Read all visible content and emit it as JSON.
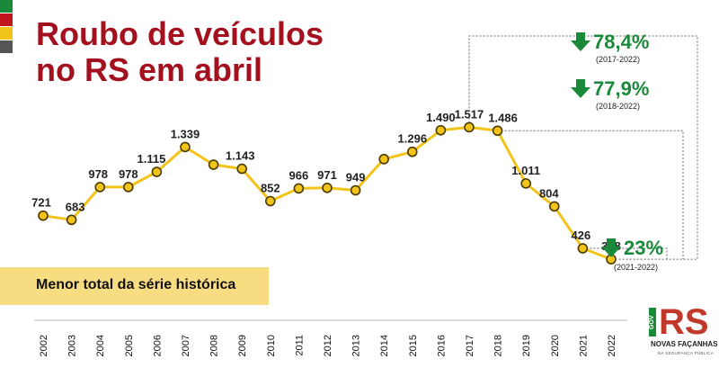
{
  "title_line1": "Roubo de veículos",
  "title_line2": "no RS em abril",
  "note": "Menor total da série histórica",
  "colors": {
    "title": "#a3111f",
    "line": "#f2c318",
    "marker_fill": "#f2c318",
    "marker_stroke": "#4a3b00",
    "decrease": "#1a8a3a",
    "note_bg": "#f7dc82",
    "flags": [
      "#1a8a3a",
      "#c0161b",
      "#f2c318",
      "#555555"
    ]
  },
  "chart_data": {
    "type": "line",
    "title": "Roubo de veículos no RS em abril",
    "xlabel": "",
    "ylabel": "",
    "grid": false,
    "x": [
      "2002",
      "2003",
      "2004",
      "2005",
      "2006",
      "2007",
      "2008",
      "2009",
      "2010",
      "2011",
      "2012",
      "2013",
      "2014",
      "2015",
      "2016",
      "2017",
      "2018",
      "2019",
      "2020",
      "2021",
      "2022"
    ],
    "values": [
      721,
      683,
      978,
      978,
      1115,
      1339,
      null,
      1143,
      852,
      966,
      971,
      949,
      null,
      1296,
      1490,
      1517,
      1486,
      1011,
      804,
      426,
      328
    ],
    "point_labels": [
      "721",
      "683",
      "978",
      "978",
      "1.115",
      "1.339",
      "",
      "1.143",
      "852",
      "966",
      "971",
      "949",
      "",
      "1.296",
      "1.490",
      "1.517",
      "1.486",
      "1.011",
      "804",
      "426",
      "328"
    ],
    "annotations": [
      {
        "pct": "78,4%",
        "period": "(2017-2022)",
        "direction": "down"
      },
      {
        "pct": "77,9%",
        "period": "(2018-2022)",
        "direction": "down"
      },
      {
        "pct": "23%",
        "period": "(2021-2022)",
        "direction": "down"
      }
    ]
  },
  "logo": {
    "gov": "GOV",
    "name": "RS",
    "tagline": "NOVAS FAÇANHAS",
    "subline": "NA SEGURANÇA PÚBLICA"
  }
}
